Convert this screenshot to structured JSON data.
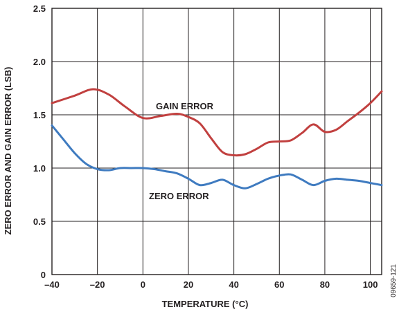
{
  "chart_data": {
    "type": "line",
    "title": "",
    "xlabel": "TEMPERATURE (°C)",
    "ylabel": "ZERO ERROR AND GAIN ERROR (LSB)",
    "xlim": [
      -40,
      105
    ],
    "ylim": [
      0,
      2.5
    ],
    "x_ticks": [
      -40,
      -20,
      0,
      20,
      40,
      60,
      80,
      100
    ],
    "x_tick_labels": [
      "–40",
      "–20",
      "0",
      "20",
      "40",
      "60",
      "80",
      "100"
    ],
    "y_ticks": [
      0,
      0.5,
      1.0,
      1.5,
      2.0,
      2.5
    ],
    "y_tick_labels": [
      "0",
      "0.5",
      "1.0",
      "1.5",
      "2.0",
      "2.5"
    ],
    "grid": true,
    "legend": "none",
    "series": [
      {
        "name": "GAIN ERROR",
        "color": "#c1403f",
        "x": [
          -40,
          -30,
          -22,
          -15,
          -8,
          0,
          8,
          15,
          20,
          25,
          30,
          35,
          40,
          45,
          50,
          55,
          60,
          65,
          70,
          75,
          80,
          85,
          90,
          95,
          100,
          105
        ],
        "y": [
          1.61,
          1.68,
          1.74,
          1.69,
          1.58,
          1.47,
          1.49,
          1.51,
          1.48,
          1.42,
          1.28,
          1.15,
          1.12,
          1.13,
          1.18,
          1.24,
          1.25,
          1.26,
          1.33,
          1.41,
          1.34,
          1.36,
          1.44,
          1.52,
          1.61,
          1.72
        ]
      },
      {
        "name": "ZERO ERROR",
        "color": "#3f7bc0",
        "x": [
          -40,
          -35,
          -30,
          -25,
          -20,
          -15,
          -10,
          -5,
          0,
          5,
          10,
          15,
          20,
          25,
          30,
          35,
          40,
          45,
          50,
          55,
          60,
          65,
          70,
          75,
          80,
          85,
          90,
          95,
          100,
          105
        ],
        "y": [
          1.4,
          1.27,
          1.14,
          1.04,
          0.99,
          0.98,
          1.0,
          1.0,
          1.0,
          0.99,
          0.97,
          0.95,
          0.9,
          0.84,
          0.86,
          0.89,
          0.84,
          0.81,
          0.85,
          0.9,
          0.93,
          0.94,
          0.89,
          0.84,
          0.88,
          0.9,
          0.89,
          0.88,
          0.86,
          0.84
        ]
      }
    ],
    "annotations": [
      "GAIN ERROR",
      "ZERO ERROR"
    ]
  },
  "figure_id": "09659-121"
}
